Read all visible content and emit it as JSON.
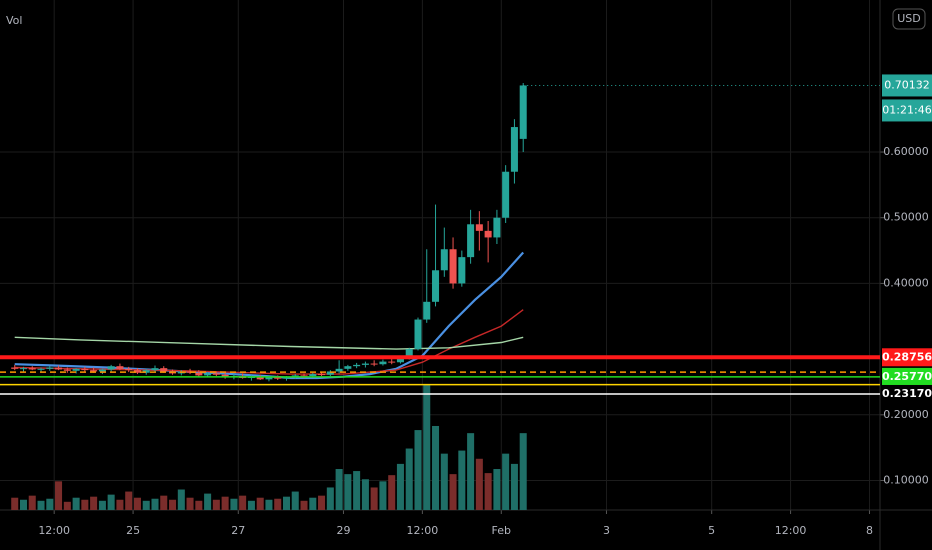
{
  "chart_data": {
    "type": "candlestick",
    "volume_title": "Vol",
    "currency": "USD",
    "countdown": "01:21:46",
    "up_color": "#26a69a",
    "down_color": "#ef5350",
    "volume_up_color": "#1f6f67",
    "volume_down_color": "#7b2d2b",
    "grid": true,
    "xlim": [
      22.47,
      39.2
    ],
    "ylim": [
      0.0551,
      0.8314
    ],
    "xticks": [
      {
        "value": 23.5,
        "label": "12:00"
      },
      25,
      27,
      29,
      {
        "value": 30.5,
        "label": "12:00"
      },
      {
        "value": 32,
        "label": "Feb"
      },
      {
        "value": 34,
        "label": "3"
      },
      {
        "value": 36,
        "label": "5"
      },
      {
        "value": 37.5,
        "label": "12:00"
      },
      {
        "value": 39,
        "label": "8"
      }
    ],
    "yticks": [
      {
        "value": 0.1,
        "label": "0.10000"
      },
      {
        "value": 0.2,
        "label": "0.20000"
      },
      {
        "value": 0.4,
        "label": "0.40000"
      },
      {
        "value": 0.5,
        "label": "0.50000"
      },
      {
        "value": 0.6,
        "label": "0.60000"
      }
    ],
    "x": [
      22.75,
      22.917,
      23.083,
      23.25,
      23.417,
      23.583,
      23.75,
      23.917,
      24.083,
      24.25,
      24.417,
      24.583,
      24.75,
      24.917,
      25.083,
      25.25,
      25.417,
      25.583,
      25.75,
      25.917,
      26.083,
      26.25,
      26.417,
      26.583,
      26.75,
      26.917,
      27.083,
      27.25,
      27.417,
      27.583,
      27.75,
      27.917,
      28.083,
      28.25,
      28.417,
      28.583,
      28.75,
      28.917,
      29.083,
      29.25,
      29.417,
      29.583,
      29.75,
      29.917,
      30.083,
      30.25,
      30.417,
      30.583,
      30.75,
      30.917,
      31.083,
      31.25,
      31.417,
      31.583,
      31.75,
      31.917,
      32.083,
      32.25,
      32.417
    ],
    "open": [
      0.272,
      0.27,
      0.271,
      0.269,
      0.27,
      0.272,
      0.269,
      0.267,
      0.27,
      0.268,
      0.266,
      0.269,
      0.274,
      0.27,
      0.268,
      0.264,
      0.268,
      0.271,
      0.266,
      0.263,
      0.266,
      0.264,
      0.26,
      0.263,
      0.261,
      0.257,
      0.259,
      0.256,
      0.258,
      0.254,
      0.257,
      0.255,
      0.258,
      0.26,
      0.259,
      0.262,
      0.261,
      0.266,
      0.27,
      0.274,
      0.276,
      0.278,
      0.277,
      0.281,
      0.28,
      0.286,
      0.3,
      0.345,
      0.372,
      0.42,
      0.452,
      0.4,
      0.44,
      0.49,
      0.48,
      0.47,
      0.5,
      0.57,
      0.62
    ],
    "high": [
      0.276,
      0.273,
      0.274,
      0.272,
      0.274,
      0.275,
      0.272,
      0.271,
      0.273,
      0.272,
      0.27,
      0.276,
      0.278,
      0.273,
      0.271,
      0.27,
      0.275,
      0.274,
      0.269,
      0.268,
      0.27,
      0.268,
      0.265,
      0.266,
      0.264,
      0.262,
      0.263,
      0.26,
      0.261,
      0.259,
      0.26,
      0.259,
      0.262,
      0.263,
      0.264,
      0.266,
      0.268,
      0.283,
      0.276,
      0.279,
      0.281,
      0.283,
      0.284,
      0.286,
      0.289,
      0.302,
      0.348,
      0.452,
      0.52,
      0.485,
      0.47,
      0.45,
      0.512,
      0.51,
      0.495,
      0.512,
      0.58,
      0.65,
      0.705
    ],
    "low": [
      0.268,
      0.266,
      0.268,
      0.265,
      0.267,
      0.268,
      0.264,
      0.263,
      0.266,
      0.264,
      0.262,
      0.266,
      0.268,
      0.265,
      0.262,
      0.261,
      0.265,
      0.264,
      0.261,
      0.26,
      0.262,
      0.258,
      0.257,
      0.259,
      0.255,
      0.254,
      0.255,
      0.252,
      0.253,
      0.251,
      0.253,
      0.252,
      0.255,
      0.256,
      0.257,
      0.259,
      0.259,
      0.263,
      0.267,
      0.271,
      0.272,
      0.274,
      0.275,
      0.277,
      0.278,
      0.284,
      0.298,
      0.34,
      0.365,
      0.41,
      0.392,
      0.395,
      0.43,
      0.45,
      0.432,
      0.46,
      0.492,
      0.552,
      0.6
    ],
    "close": [
      0.27,
      0.271,
      0.269,
      0.27,
      0.272,
      0.269,
      0.267,
      0.27,
      0.268,
      0.266,
      0.269,
      0.274,
      0.27,
      0.268,
      0.264,
      0.268,
      0.271,
      0.266,
      0.263,
      0.266,
      0.264,
      0.26,
      0.263,
      0.261,
      0.257,
      0.259,
      0.256,
      0.258,
      0.254,
      0.257,
      0.255,
      0.258,
      0.26,
      0.259,
      0.262,
      0.261,
      0.266,
      0.27,
      0.274,
      0.276,
      0.278,
      0.277,
      0.281,
      0.28,
      0.286,
      0.3,
      0.345,
      0.372,
      0.42,
      0.452,
      0.4,
      0.44,
      0.49,
      0.48,
      0.47,
      0.5,
      0.57,
      0.638,
      0.70132
    ],
    "volume": [
      12,
      10,
      14,
      9,
      11,
      28,
      8,
      12,
      10,
      13,
      9,
      15,
      10,
      18,
      12,
      9,
      11,
      14,
      10,
      20,
      12,
      9,
      16,
      10,
      13,
      11,
      14,
      9,
      12,
      10,
      11,
      13,
      18,
      9,
      12,
      14,
      22,
      40,
      35,
      38,
      30,
      22,
      28,
      34,
      45,
      60,
      78,
      122,
      82,
      55,
      35,
      58,
      75,
      50,
      36,
      40,
      55,
      45,
      75
    ],
    "moving_averages": [
      {
        "color": "#4a90e2",
        "width": 2.2,
        "x": [
          22.75,
          23.5,
          24.5,
          25.5,
          26.5,
          27.5,
          28,
          28.5,
          29,
          29.5,
          30,
          30.5,
          31,
          31.5,
          32,
          32.417
        ],
        "values": [
          0.277,
          0.275,
          0.272,
          0.268,
          0.264,
          0.259,
          0.256,
          0.256,
          0.258,
          0.262,
          0.27,
          0.29,
          0.335,
          0.375,
          0.41,
          0.447
        ]
      },
      {
        "color": "#c62828",
        "width": 1.4,
        "x": [
          22.75,
          24,
          26,
          28,
          29,
          30,
          30.5,
          31,
          31.5,
          32,
          32.417
        ],
        "values": [
          0.272,
          0.27,
          0.267,
          0.262,
          0.262,
          0.268,
          0.28,
          0.3,
          0.318,
          0.335,
          0.36
        ]
      },
      {
        "color": "#a5d6a7",
        "width": 1.4,
        "x": [
          22.75,
          24,
          26,
          28,
          30,
          31,
          32,
          32.417
        ],
        "values": [
          0.318,
          0.314,
          0.309,
          0.304,
          0.3,
          0.302,
          0.31,
          0.318
        ]
      }
    ],
    "levels": [
      {
        "value": 0.28756,
        "color": "#ff1a1a",
        "width": 4,
        "style": "solid"
      },
      {
        "value": 0.265,
        "color": "#ff9800",
        "width": 1.5,
        "style": "dashed"
      },
      {
        "value": 0.2577,
        "label": "0.25770",
        "color": "#22dd22",
        "width": 1.5,
        "style": "solid"
      },
      {
        "value": 0.2459,
        "color": "#ffd400",
        "width": 1.5,
        "style": "solid"
      },
      {
        "value": 0.2317,
        "label": "0.23170",
        "color": "#ffffff",
        "width": 1.5,
        "style": "solid"
      }
    ]
  }
}
